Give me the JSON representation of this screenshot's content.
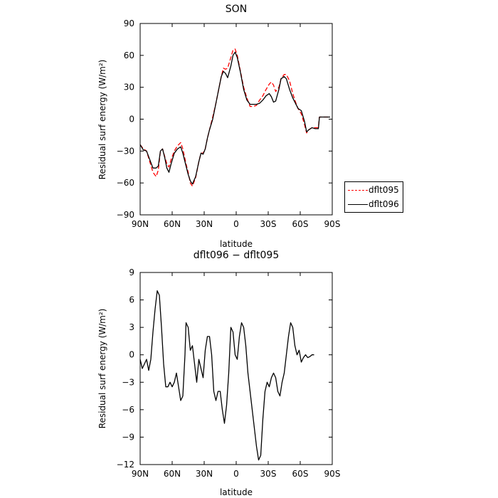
{
  "chart_data": [
    {
      "type": "line",
      "title": "SON",
      "xlabel": "latitude",
      "ylabel": "Residual surf energy (W/m²)",
      "xlim": [
        90,
        -90
      ],
      "ylim": [
        -90,
        90
      ],
      "xticks": [
        90,
        60,
        30,
        0,
        -30,
        -60,
        -90
      ],
      "xtick_labels": [
        "90N",
        "60N",
        "30N",
        "0",
        "30S",
        "60S",
        "90S"
      ],
      "yticks": [
        -90,
        -60,
        -30,
        0,
        30,
        60,
        90
      ],
      "ytick_labels": [
        "−90",
        "−60",
        "−30",
        "0",
        "30",
        "60",
        "90"
      ],
      "legend": "outside-right",
      "series": [
        {
          "name": "dflt095",
          "color": "#ff0000",
          "dash": "dashed",
          "points": [
            [
              90,
              -24
            ],
            [
              87,
              -28
            ],
            [
              84,
              -30
            ],
            [
              81,
              -40
            ],
            [
              78,
              -50
            ],
            [
              75,
              -54
            ],
            [
              73,
              -48
            ],
            [
              71,
              -30
            ],
            [
              69,
              -28
            ],
            [
              67,
              -35
            ],
            [
              65,
              -42
            ],
            [
              63,
              -45
            ],
            [
              61,
              -38
            ],
            [
              58,
              -30
            ],
            [
              55,
              -25
            ],
            [
              52,
              -22
            ],
            [
              50,
              -28
            ],
            [
              47,
              -42
            ],
            [
              45,
              -50
            ],
            [
              43,
              -60
            ],
            [
              41,
              -63
            ],
            [
              38,
              -55
            ],
            [
              35,
              -40
            ],
            [
              33,
              -32
            ],
            [
              31,
              -32
            ],
            [
              29,
              -28
            ],
            [
              27,
              -18
            ],
            [
              25,
              -10
            ],
            [
              22,
              2
            ],
            [
              19,
              15
            ],
            [
              17,
              25
            ],
            [
              14,
              40
            ],
            [
              12,
              48
            ],
            [
              10,
              47
            ],
            [
              8,
              48
            ],
            [
              5,
              58
            ],
            [
              3,
              65
            ],
            [
              1,
              66
            ],
            [
              -1,
              60
            ],
            [
              -4,
              45
            ],
            [
              -7,
              30
            ],
            [
              -10,
              20
            ],
            [
              -13,
              12
            ],
            [
              -16,
              12
            ],
            [
              -19,
              13
            ],
            [
              -22,
              18
            ],
            [
              -25,
              22
            ],
            [
              -28,
              28
            ],
            [
              -31,
              33
            ],
            [
              -33,
              35
            ],
            [
              -35,
              32
            ],
            [
              -37,
              26
            ],
            [
              -40,
              30
            ],
            [
              -42,
              38
            ],
            [
              -45,
              42
            ],
            [
              -47,
              42
            ],
            [
              -50,
              36
            ],
            [
              -53,
              24
            ],
            [
              -56,
              15
            ],
            [
              -58,
              10
            ],
            [
              -61,
              5
            ],
            [
              -64,
              -5
            ],
            [
              -66,
              -13
            ],
            [
              -68,
              -10
            ],
            [
              -71,
              -8
            ],
            [
              -74,
              -8
            ],
            [
              -77,
              -8
            ],
            [
              -78,
              2
            ],
            [
              -81,
              2
            ],
            [
              -84,
              2
            ],
            [
              -88,
              2
            ]
          ]
        },
        {
          "name": "dflt096",
          "color": "#000000",
          "dash": "solid",
          "points": [
            [
              90,
              -24
            ],
            [
              87,
              -29
            ],
            [
              84,
              -30
            ],
            [
              81,
              -38
            ],
            [
              78,
              -46
            ],
            [
              75,
              -46
            ],
            [
              73,
              -44
            ],
            [
              71,
              -30
            ],
            [
              69,
              -28
            ],
            [
              67,
              -36
            ],
            [
              65,
              -46
            ],
            [
              63,
              -50
            ],
            [
              61,
              -42
            ],
            [
              58,
              -32
            ],
            [
              55,
              -28
            ],
            [
              52,
              -26
            ],
            [
              50,
              -32
            ],
            [
              47,
              -44
            ],
            [
              45,
              -52
            ],
            [
              43,
              -58
            ],
            [
              41,
              -61
            ],
            [
              38,
              -54
            ],
            [
              35,
              -40
            ],
            [
              33,
              -32
            ],
            [
              31,
              -33
            ],
            [
              29,
              -28
            ],
            [
              27,
              -18
            ],
            [
              25,
              -10
            ],
            [
              22,
              0
            ],
            [
              19,
              15
            ],
            [
              17,
              25
            ],
            [
              14,
              40
            ],
            [
              12,
              45
            ],
            [
              10,
              43
            ],
            [
              8,
              39
            ],
            [
              5,
              50
            ],
            [
              3,
              60
            ],
            [
              1,
              63
            ],
            [
              -1,
              58
            ],
            [
              -4,
              44
            ],
            [
              -7,
              28
            ],
            [
              -10,
              18
            ],
            [
              -13,
              14
            ],
            [
              -16,
              14
            ],
            [
              -19,
              14
            ],
            [
              -22,
              15
            ],
            [
              -25,
              18
            ],
            [
              -28,
              22
            ],
            [
              -31,
              24
            ],
            [
              -33,
              21
            ],
            [
              -35,
              16
            ],
            [
              -37,
              17
            ],
            [
              -40,
              28
            ],
            [
              -42,
              38
            ],
            [
              -45,
              40
            ],
            [
              -47,
              38
            ],
            [
              -50,
              28
            ],
            [
              -53,
              20
            ],
            [
              -56,
              14
            ],
            [
              -58,
              10
            ],
            [
              -61,
              8
            ],
            [
              -64,
              -2
            ],
            [
              -66,
              -12
            ],
            [
              -68,
              -10
            ],
            [
              -71,
              -8
            ],
            [
              -74,
              -9
            ],
            [
              -77,
              -9
            ],
            [
              -78,
              2
            ],
            [
              -81,
              2
            ],
            [
              -84,
              2
            ],
            [
              -88,
              2
            ]
          ]
        }
      ]
    },
    {
      "type": "line",
      "title": "dflt096 − dflt095",
      "xlabel": "latitude",
      "ylabel": "Residual surf energy (W/m²)",
      "xlim": [
        90,
        -90
      ],
      "ylim": [
        -12,
        9
      ],
      "xticks": [
        90,
        60,
        30,
        0,
        -30,
        -60,
        -90
      ],
      "xtick_labels": [
        "90N",
        "60N",
        "30N",
        "0",
        "30S",
        "60S",
        "90S"
      ],
      "yticks": [
        -12,
        -9,
        -6,
        -3,
        0,
        3,
        6,
        9
      ],
      "ytick_labels": [
        "−12",
        "−9",
        "−6",
        "−3",
        "0",
        "3",
        "6",
        "9"
      ],
      "series": [
        {
          "color": "#000000",
          "dash": "solid",
          "points": [
            [
              90,
              -0.5
            ],
            [
              88,
              -1.5
            ],
            [
              86,
              -1
            ],
            [
              84,
              -0.5
            ],
            [
              82,
              -1.7
            ],
            [
              80,
              -0.5
            ],
            [
              78,
              2.5
            ],
            [
              76,
              5
            ],
            [
              74,
              7
            ],
            [
              72,
              6.5
            ],
            [
              70,
              3
            ],
            [
              68,
              -1
            ],
            [
              66,
              -3.5
            ],
            [
              64,
              -3.5
            ],
            [
              62,
              -3
            ],
            [
              60,
              -3.5
            ],
            [
              58,
              -3
            ],
            [
              56,
              -2
            ],
            [
              54,
              -3.5
            ],
            [
              52,
              -5
            ],
            [
              50,
              -4.5
            ],
            [
              48,
              0
            ],
            [
              47,
              3.5
            ],
            [
              45,
              3
            ],
            [
              43,
              0.5
            ],
            [
              41,
              1
            ],
            [
              39,
              -1
            ],
            [
              37,
              -3
            ],
            [
              35,
              -0.5
            ],
            [
              33,
              -1.5
            ],
            [
              31,
              -2.5
            ],
            [
              29,
              0.5
            ],
            [
              27,
              2
            ],
            [
              25,
              2
            ],
            [
              23,
              0
            ],
            [
              21,
              -4
            ],
            [
              19,
              -5
            ],
            [
              17,
              -4
            ],
            [
              15,
              -4
            ],
            [
              13,
              -6
            ],
            [
              11,
              -7.5
            ],
            [
              9,
              -5.5
            ],
            [
              7,
              -2
            ],
            [
              5,
              3
            ],
            [
              3,
              2.5
            ],
            [
              1,
              0
            ],
            [
              -1,
              -0.5
            ],
            [
              -3,
              2
            ],
            [
              -5,
              3.5
            ],
            [
              -7,
              3
            ],
            [
              -9,
              1
            ],
            [
              -11,
              -2
            ],
            [
              -14,
              -5
            ],
            [
              -17,
              -8
            ],
            [
              -19,
              -10
            ],
            [
              -21,
              -11.5
            ],
            [
              -23,
              -11
            ],
            [
              -25,
              -7
            ],
            [
              -27,
              -4
            ],
            [
              -29,
              -3
            ],
            [
              -31,
              -3.5
            ],
            [
              -33,
              -2.5
            ],
            [
              -35,
              -2
            ],
            [
              -37,
              -2.5
            ],
            [
              -39,
              -4
            ],
            [
              -41,
              -4.5
            ],
            [
              -43,
              -3
            ],
            [
              -45,
              -2
            ],
            [
              -47,
              0
            ],
            [
              -49,
              2
            ],
            [
              -51,
              3.5
            ],
            [
              -53,
              3
            ],
            [
              -55,
              1
            ],
            [
              -57,
              0
            ],
            [
              -59,
              0.5
            ],
            [
              -61,
              -0.8
            ],
            [
              -63,
              -0.3
            ],
            [
              -65,
              0
            ],
            [
              -67,
              -0.3
            ],
            [
              -69,
              -0.2
            ],
            [
              -71,
              0
            ],
            [
              -73,
              0
            ]
          ]
        }
      ]
    }
  ]
}
